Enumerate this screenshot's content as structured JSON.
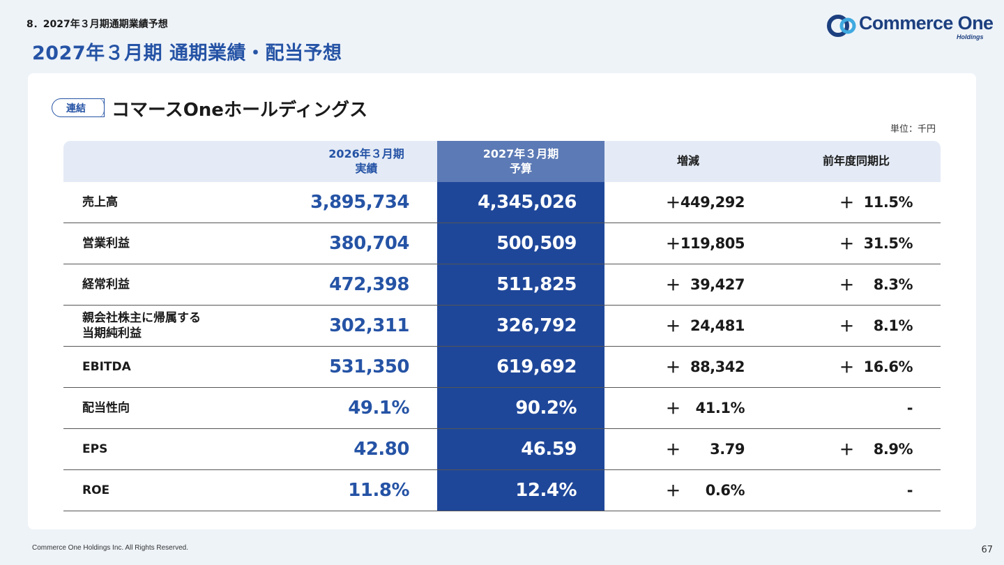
{
  "header": {
    "section_label": "8．2027年３月期通期業績予想",
    "page_title": "2027年３月期 通期業績・配当予想"
  },
  "logo": {
    "text": "Commerce One",
    "sub": "Holdings",
    "colors": {
      "dark": "#1c3f7f",
      "light": "#3fa9e0"
    }
  },
  "badge": "連結",
  "company": "コマースOneホールディングス",
  "unit": "単位：千円",
  "table": {
    "headers": {
      "actual_line1": "2026年３月期",
      "actual_line2": "実績",
      "forecast_line1": "2027年３月期",
      "forecast_line2": "予算",
      "diff": "増減",
      "ratio": "前年度同期比"
    },
    "rows": [
      {
        "label": "売上高",
        "actual": "3,895,734",
        "forecast": "4,345,026",
        "diff_sign": "＋",
        "diff": "449,292",
        "ratio_sign": "＋",
        "ratio": "11.5%"
      },
      {
        "label": "営業利益",
        "actual": "380,704",
        "forecast": "500,509",
        "diff_sign": "＋",
        "diff": "119,805",
        "ratio_sign": "＋",
        "ratio": "31.5%"
      },
      {
        "label": "経常利益",
        "actual": "472,398",
        "forecast": "511,825",
        "diff_sign": "＋",
        "diff": "39,427",
        "ratio_sign": "＋",
        "ratio": "8.3%"
      },
      {
        "label": "親会社株主に帰属する",
        "label2": "当期純利益",
        "actual": "302,311",
        "forecast": "326,792",
        "diff_sign": "＋",
        "diff": "24,481",
        "ratio_sign": "＋",
        "ratio": "8.1%"
      },
      {
        "label": "EBITDA",
        "actual": "531,350",
        "forecast": "619,692",
        "diff_sign": "＋",
        "diff": "88,342",
        "ratio_sign": "＋",
        "ratio": "16.6%"
      },
      {
        "label": "配当性向",
        "actual": "49.1%",
        "forecast": "90.2%",
        "diff_sign": "＋",
        "diff": "41.1%",
        "ratio_sign": "",
        "ratio": "-"
      },
      {
        "label": "EPS",
        "actual": "42.80",
        "forecast": "46.59",
        "diff_sign": "＋",
        "diff": "3.79",
        "ratio_sign": "＋",
        "ratio": "8.9%"
      },
      {
        "label": "ROE",
        "actual": "11.8%",
        "forecast": "12.4%",
        "diff_sign": "＋",
        "diff": "0.6%",
        "ratio_sign": "",
        "ratio": "-"
      }
    ]
  },
  "footer": {
    "copyright": "Commerce One Holdings Inc. All Rights Reserved.",
    "page_number": "67"
  }
}
